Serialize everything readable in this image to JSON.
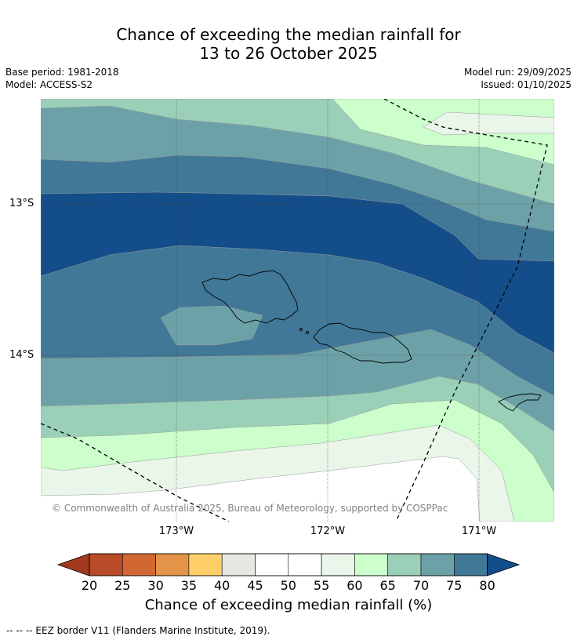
{
  "header": {
    "title_line1": "Chance of exceeding the median rainfall for",
    "title_line2": "13 to 26 October 2025",
    "base_period": "Base period: 1981-2018",
    "model": "Model: ACCESS-S2",
    "model_run": "Model run: 29/09/2025",
    "issued": "Issued: 01/10/2025"
  },
  "map": {
    "lat_labels": [
      "13°S",
      "14°S"
    ],
    "lon_labels": [
      "173°W",
      "172°W",
      "171°W"
    ],
    "copyright": "© Commonwealth of Australia 2025, Bureau of Meteorology, supported by COSPPac"
  },
  "colorbar": {
    "ticks": [
      "20",
      "25",
      "30",
      "35",
      "40",
      "45",
      "50",
      "55",
      "60",
      "65",
      "70",
      "75",
      "80"
    ],
    "title": "Chance of exceeding median rainfall (%)",
    "colors": [
      "#a5391f",
      "#b94b28",
      "#d16834",
      "#e39448",
      "#fecf69",
      "#e9e7e4",
      "#ffffff",
      "#ffffff",
      "#eaf6ea",
      "#ccffcc",
      "#9bd0b8",
      "#6ca2a7",
      "#417898",
      "#144e8a"
    ]
  },
  "footer": {
    "eez_note": "--  --  -- EEZ border V11 (Flanders Marine Institute, 2019)."
  }
}
